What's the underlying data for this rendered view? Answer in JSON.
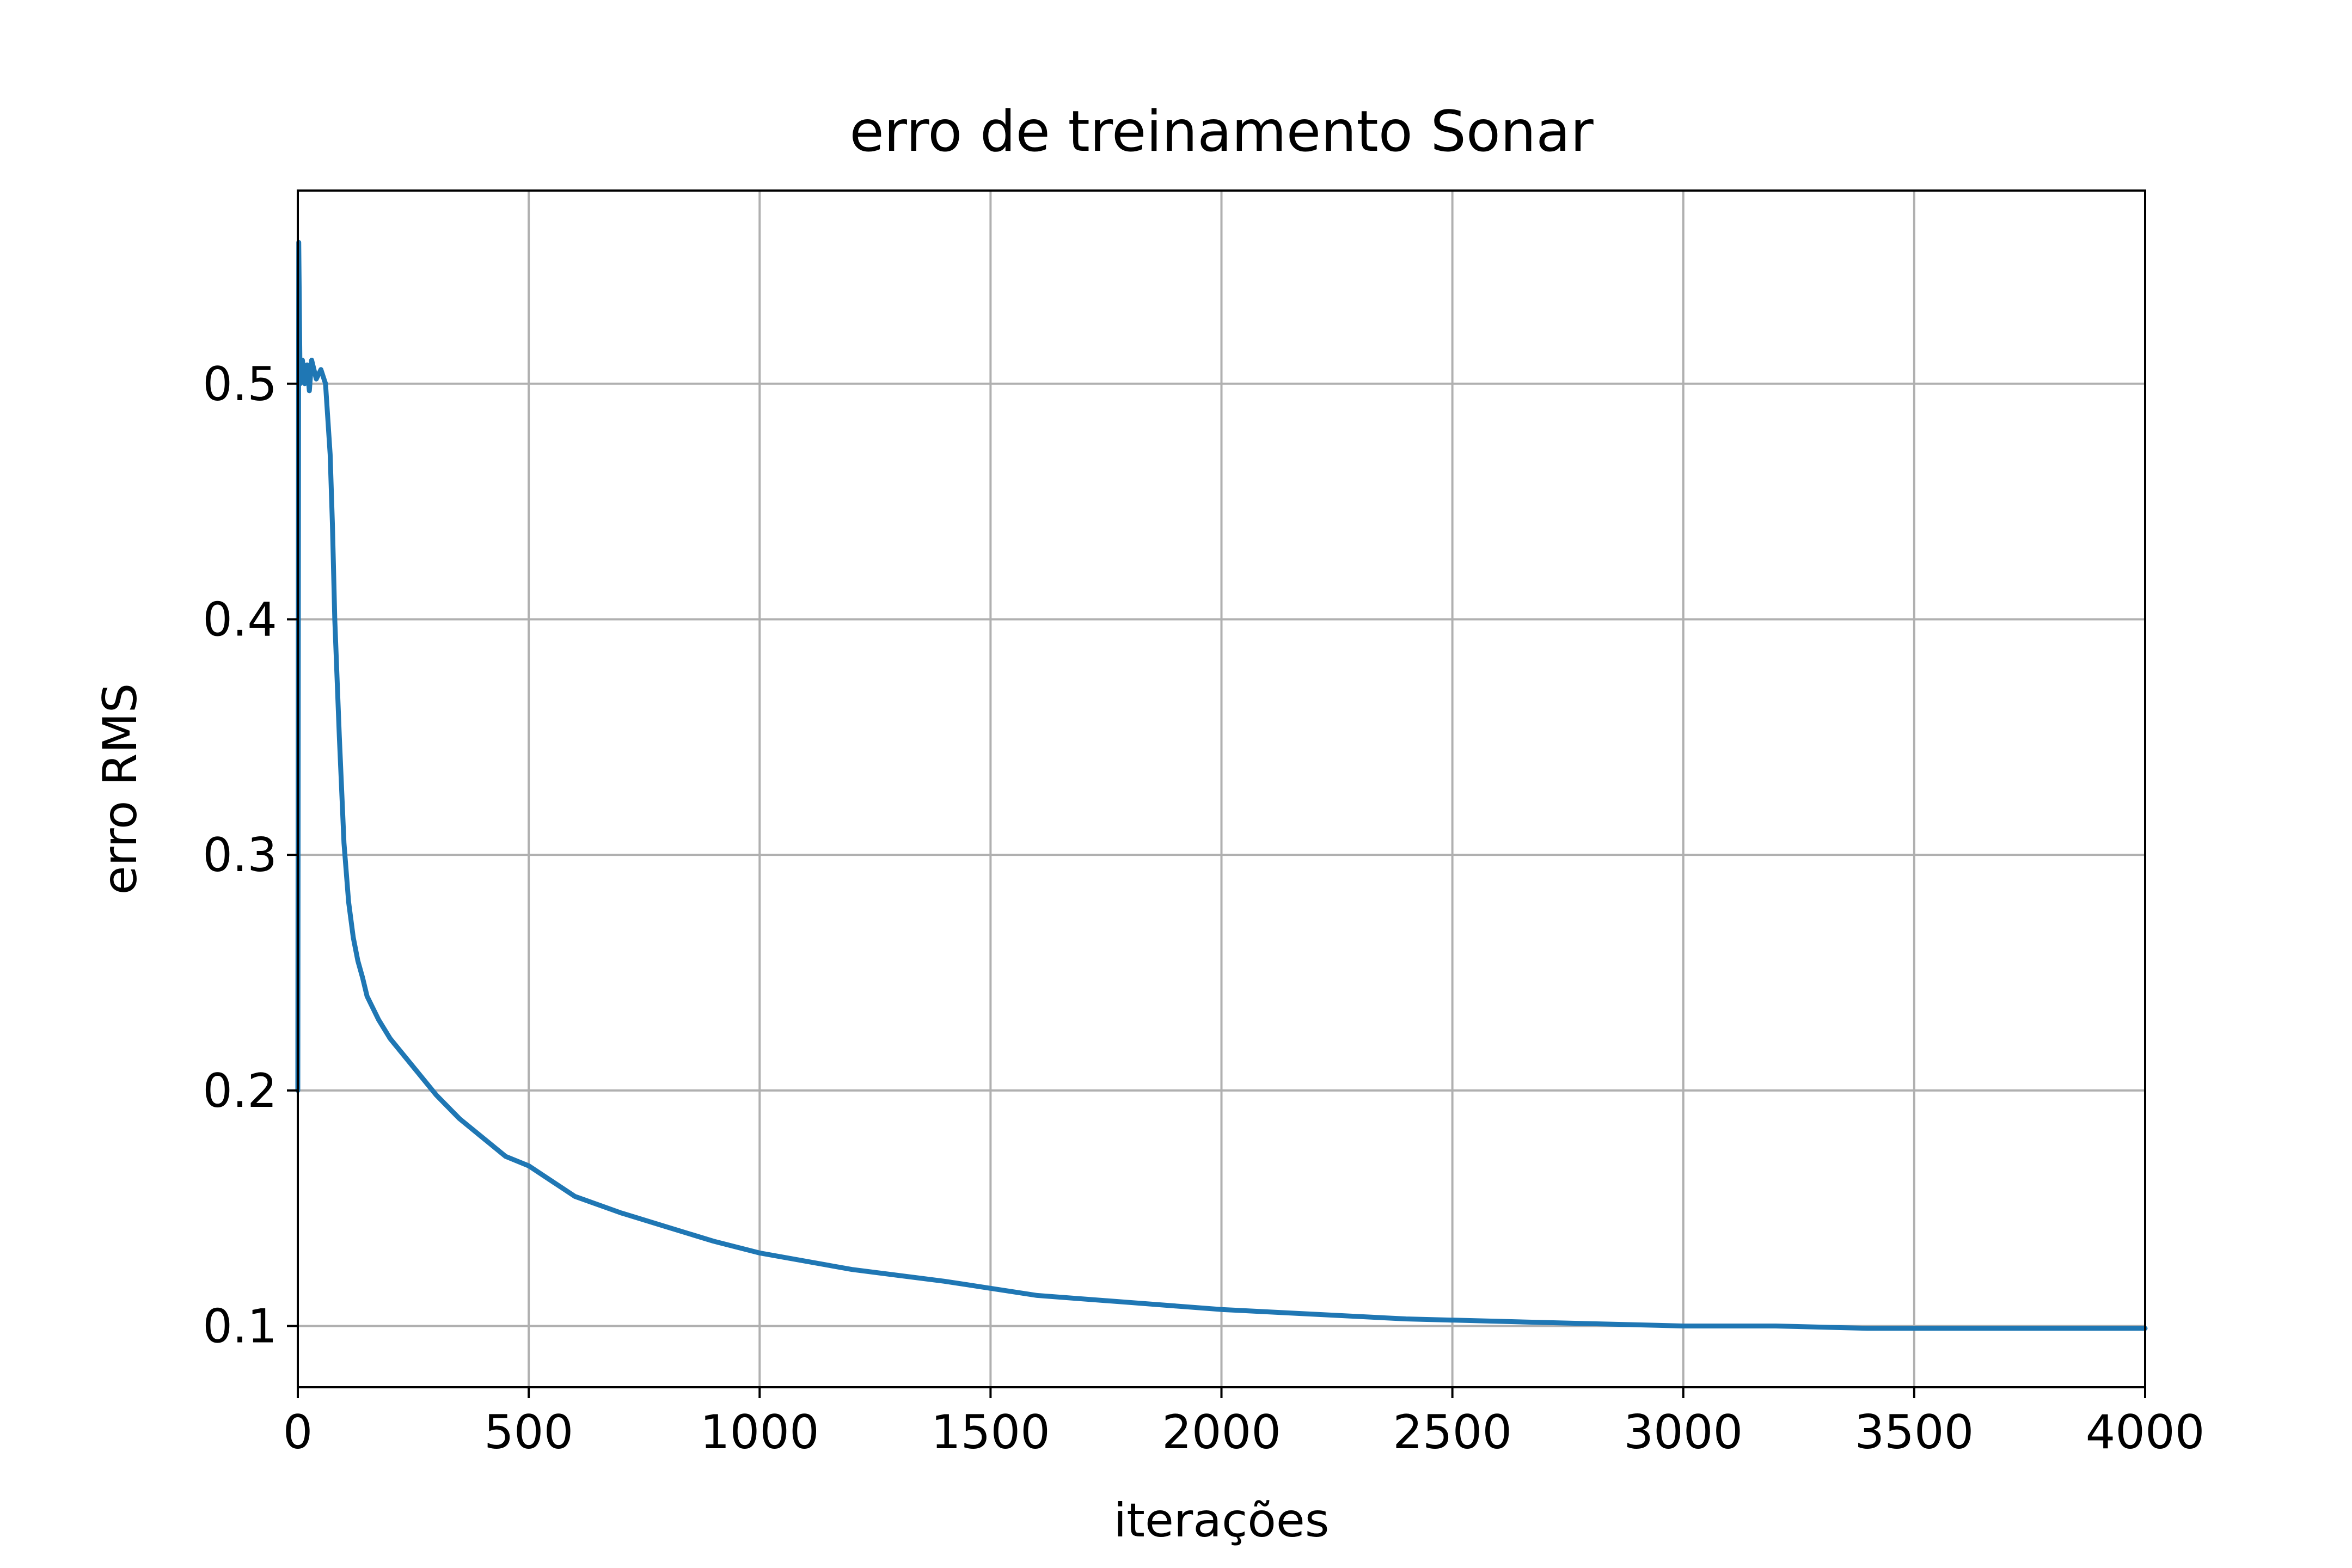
{
  "chart_data": {
    "type": "line",
    "title": "erro de treinamento Sonar",
    "xlabel": "iterações",
    "ylabel": "erro RMS",
    "xlim": [
      0,
      4000
    ],
    "ylim": [
      0.074,
      0.582
    ],
    "grid": true,
    "line_color": "#1f77b4",
    "x_ticks": [
      0,
      500,
      1000,
      1500,
      2000,
      2500,
      3000,
      3500,
      4000
    ],
    "x_tick_labels": [
      "0",
      "500",
      "1000",
      "1500",
      "2000",
      "2500",
      "3000",
      "3500",
      "4000"
    ],
    "y_ticks": [
      0.1,
      0.2,
      0.3,
      0.4,
      0.5
    ],
    "y_tick_labels": [
      "0.1",
      "0.2",
      "0.3",
      "0.4",
      "0.5"
    ],
    "series": [
      {
        "x": [
          0,
          2,
          5,
          10,
          15,
          20,
          25,
          30,
          40,
          50,
          60,
          70,
          75,
          80,
          90,
          100,
          110,
          120,
          130,
          140,
          150,
          175,
          200,
          250,
          300,
          350,
          400,
          450,
          500,
          600,
          700,
          800,
          900,
          1000,
          1200,
          1400,
          1500,
          1600,
          1800,
          2000,
          2200,
          2400,
          2600,
          2800,
          3000,
          3200,
          3400,
          3600,
          3800,
          4000
        ],
        "y": [
          0.2,
          0.56,
          0.5,
          0.51,
          0.5,
          0.508,
          0.497,
          0.51,
          0.502,
          0.506,
          0.5,
          0.47,
          0.44,
          0.4,
          0.35,
          0.305,
          0.28,
          0.265,
          0.255,
          0.248,
          0.24,
          0.23,
          0.222,
          0.21,
          0.198,
          0.188,
          0.18,
          0.172,
          0.168,
          0.155,
          0.148,
          0.142,
          0.136,
          0.131,
          0.124,
          0.119,
          0.116,
          0.113,
          0.11,
          0.107,
          0.105,
          0.103,
          0.102,
          0.101,
          0.1,
          0.1,
          0.099,
          0.099,
          0.099,
          0.099
        ]
      }
    ]
  }
}
